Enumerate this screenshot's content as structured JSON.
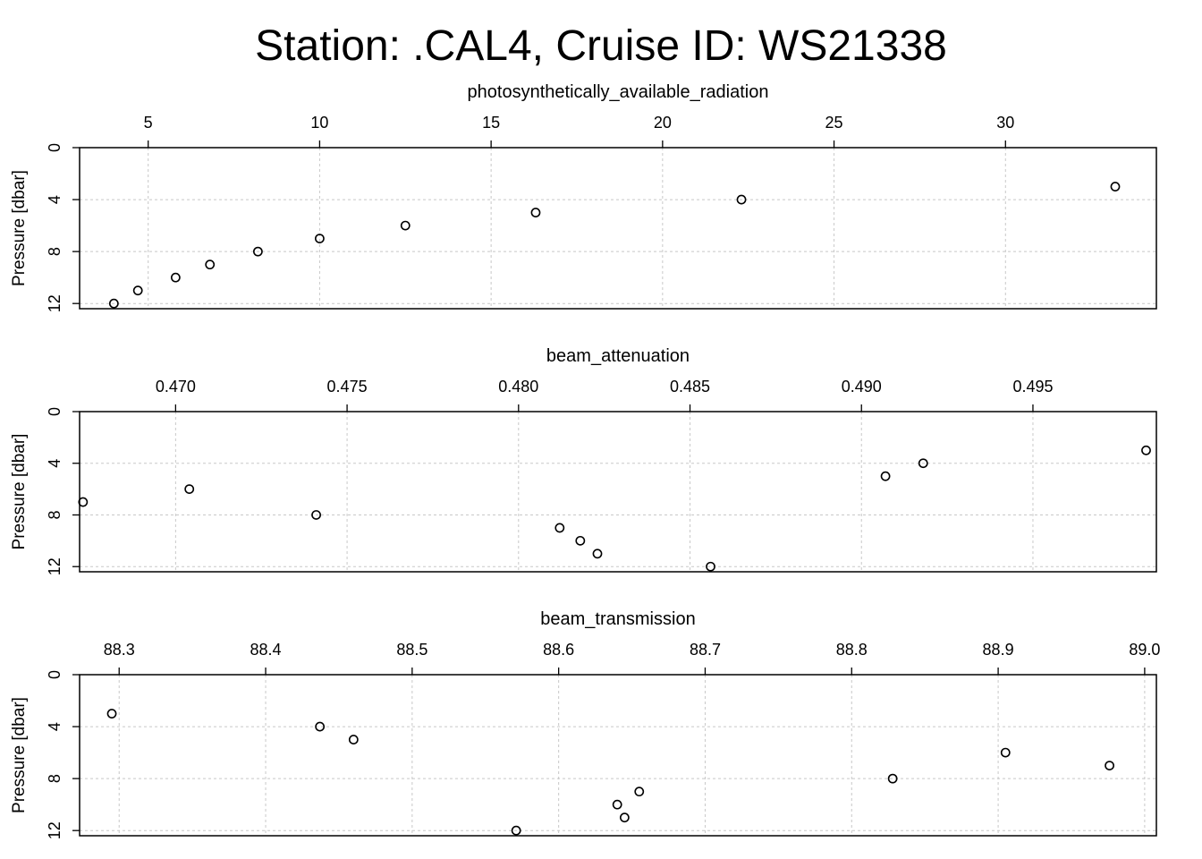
{
  "chart_data": [
    {
      "type": "scatter",
      "title": "Station: .CAL4, Cruise ID: WS21338",
      "xlabel": "photosynthetically_available_radiation",
      "ylabel": "Pressure [dbar]",
      "xlim": [
        3,
        34.4
      ],
      "ylim": [
        12.4,
        0
      ],
      "xticks": [
        5,
        10,
        15,
        20,
        25,
        30
      ],
      "xtick_labels": [
        "5",
        "10",
        "15",
        "20",
        "25",
        "30"
      ],
      "yticks": [
        0,
        4,
        8,
        12
      ],
      "ytick_labels": [
        "0",
        "4",
        "8",
        "12"
      ],
      "grid": true,
      "x": [
        33.2,
        22.3,
        16.3,
        12.5,
        10.0,
        8.2,
        6.8,
        5.8,
        4.7,
        4.0
      ],
      "y": [
        3,
        4,
        5,
        6,
        7,
        8,
        9,
        10,
        11,
        12
      ]
    },
    {
      "type": "scatter",
      "xlabel": "beam_attenuation",
      "ylabel": "Pressure [dbar]",
      "xlim": [
        0.4672,
        0.4986
      ],
      "ylim": [
        12.4,
        0
      ],
      "xticks": [
        0.47,
        0.475,
        0.48,
        0.485,
        0.49,
        0.495
      ],
      "xtick_labels": [
        "0.470",
        "0.475",
        "0.480",
        "0.485",
        "0.490",
        "0.495"
      ],
      "yticks": [
        0,
        4,
        8,
        12
      ],
      "ytick_labels": [
        "0",
        "4",
        "8",
        "12"
      ],
      "grid": true,
      "x": [
        0.4983,
        0.4918,
        0.4907,
        0.4704,
        0.4673,
        0.4741,
        0.4812,
        0.4818,
        0.4823,
        0.4856
      ],
      "y": [
        3,
        4,
        5,
        6,
        7,
        8,
        9,
        10,
        11,
        12
      ]
    },
    {
      "type": "scatter",
      "xlabel": "beam_transmission",
      "ylabel": "Pressure [dbar]",
      "xlim": [
        88.273,
        89.008
      ],
      "ylim": [
        12.4,
        0
      ],
      "xticks": [
        88.3,
        88.4,
        88.5,
        88.6,
        88.7,
        88.8,
        88.9,
        89.0
      ],
      "xtick_labels": [
        "88.3",
        "88.4",
        "88.5",
        "88.6",
        "88.7",
        "88.8",
        "88.9",
        "89.0"
      ],
      "yticks": [
        0,
        4,
        8,
        12
      ],
      "ytick_labels": [
        "0",
        "4",
        "8",
        "12"
      ],
      "grid": true,
      "x": [
        88.295,
        88.437,
        88.46,
        88.905,
        88.976,
        88.828,
        88.655,
        88.64,
        88.645,
        88.571
      ],
      "y": [
        3,
        4,
        5,
        6,
        7,
        8,
        9,
        10,
        11,
        12
      ]
    }
  ]
}
